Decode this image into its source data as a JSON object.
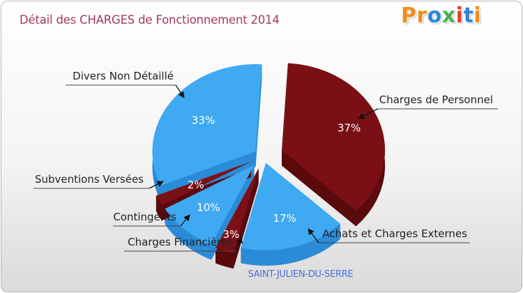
{
  "header": {
    "title": "Détail des CHARGES de Fonctionnement 2014",
    "logo": "Proxiti"
  },
  "footer": {
    "location": "SAINT-JULIEN-DU-SERRE"
  },
  "colors": {
    "dark_red": "#7a1015",
    "dark_red_side": "#5a090d",
    "blue": "#3fa9f2",
    "blue_side": "#2b8bd6",
    "title": "#a33a5a",
    "location": "#4a6fd8",
    "logo": [
      "#f08c1a",
      "#f08c1a",
      "#2e86d6",
      "#4caf50",
      "#e6392e",
      "#2e86d6",
      "#f08c1a"
    ]
  },
  "chart_data": {
    "type": "pie",
    "style": "3d-exploded",
    "title": "Détail des CHARGES de Fonctionnement 2014",
    "slices": [
      {
        "label": "Charges de Personnel",
        "value": 37,
        "display": "37%",
        "color": "#7a1015"
      },
      {
        "label": "Achats et Charges Externes",
        "value": 17,
        "display": "17%",
        "color": "#3fa9f2"
      },
      {
        "label": "Charges Financières",
        "value": 3,
        "display": "3%",
        "color": "#7a1015"
      },
      {
        "label": "Contingents",
        "value": 10,
        "display": "10%",
        "color": "#3fa9f2"
      },
      {
        "label": "Subventions Versées",
        "value": 2,
        "display": "2%",
        "color": "#7a1015"
      },
      {
        "label": "Divers Non Détaillé",
        "value": 33,
        "display": "33%",
        "color": "#3fa9f2"
      }
    ]
  }
}
